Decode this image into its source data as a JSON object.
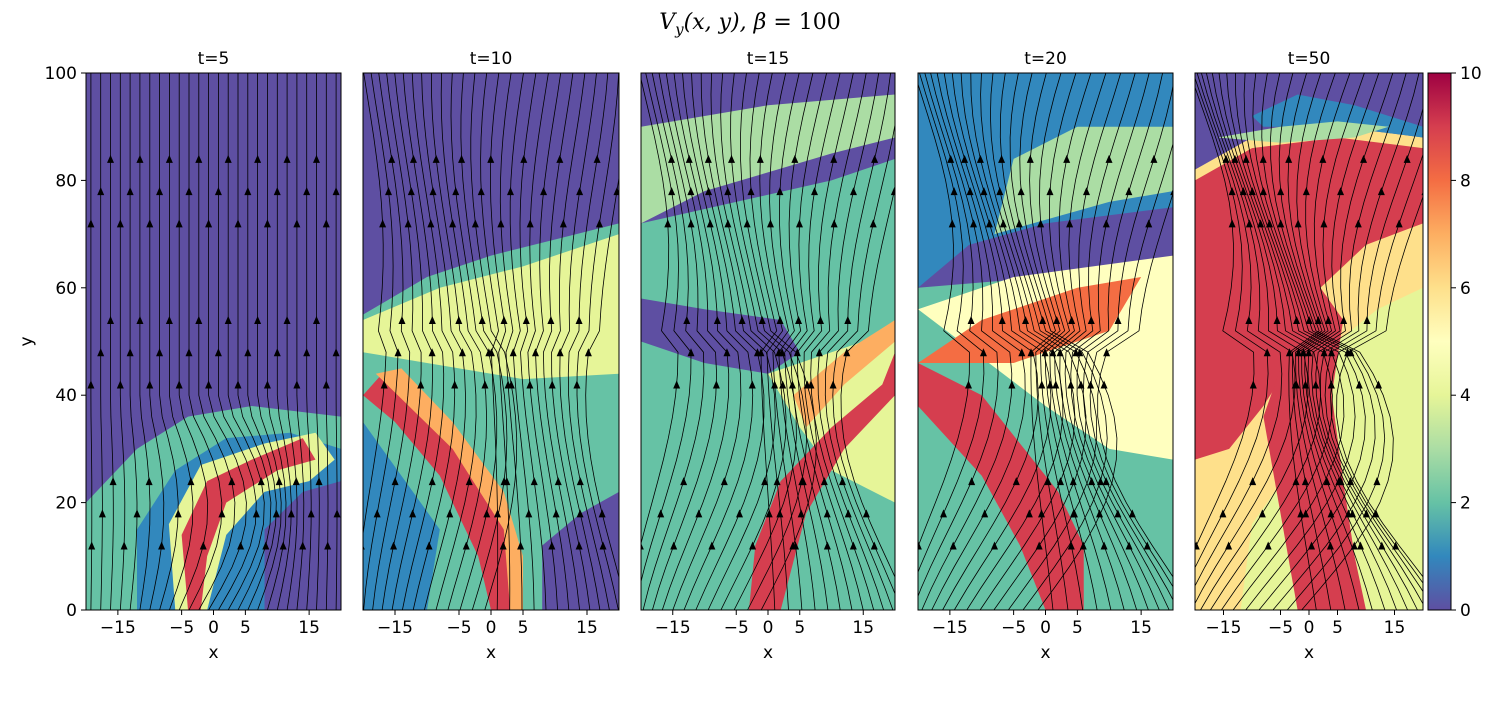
{
  "figure": {
    "suptitle": "V_y(x, y), β = 100",
    "suptitle_parts": {
      "var": "V",
      "sub": "y",
      "args": "(x, y), ",
      "beta": "β",
      "eq": " = 100"
    }
  },
  "chart_data": {
    "type": "heatmap",
    "title": "V_y(x, y), β = 100",
    "xlabel": "x",
    "ylabel": "y",
    "xlim": [
      -20,
      20
    ],
    "ylim": [
      0,
      100
    ],
    "xticks": [
      -15,
      -5,
      0,
      5,
      15
    ],
    "xtick_labels": [
      "−15",
      "−5",
      "0",
      "5",
      "15"
    ],
    "yticks": [
      0,
      20,
      40,
      60,
      80,
      100
    ],
    "ytick_labels": [
      "0",
      "20",
      "40",
      "60",
      "80",
      "100"
    ],
    "colormap": "Spectral_r",
    "colorbar": {
      "vmin": 0,
      "vmax": 10,
      "ticks": [
        0,
        2,
        4,
        6,
        8,
        10
      ],
      "tick_labels": [
        "0",
        "2",
        "4",
        "6",
        "8",
        "10"
      ]
    },
    "overlay": "magnetic field streamlines with arrows",
    "colors": {
      "low": "#5e4fa2",
      "mid": "#ffffbf",
      "high": "#9e0142"
    },
    "panels": [
      {
        "title": "t=5",
        "time": 5
      },
      {
        "title": "t=10",
        "time": 10
      },
      {
        "title": "t=15",
        "time": 15
      },
      {
        "title": "t=20",
        "time": 20
      },
      {
        "title": "t=50",
        "time": 50
      }
    ]
  }
}
